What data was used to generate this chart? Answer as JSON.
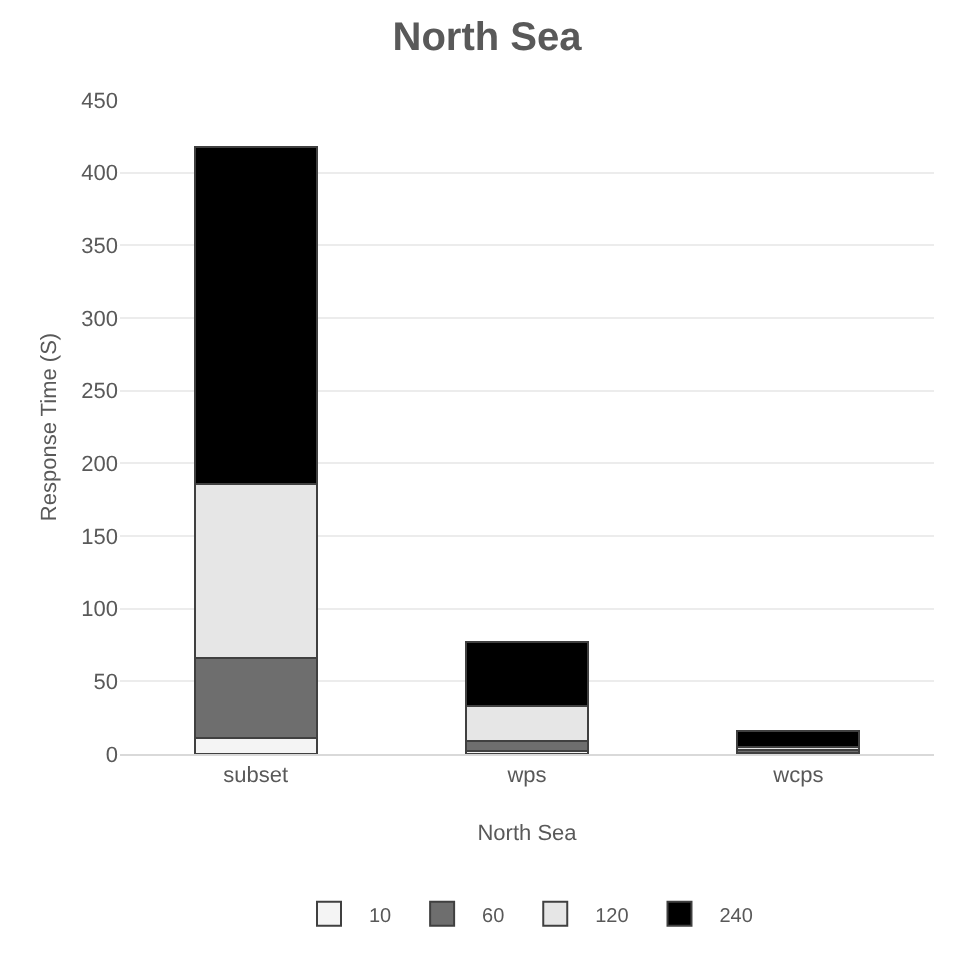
{
  "chart_data": {
    "type": "bar",
    "title": "North Sea",
    "xlabel": "North Sea",
    "ylabel": "Response Time (S)",
    "categories": [
      "subset",
      "wps",
      "wcps"
    ],
    "stacked": true,
    "ylim": [
      0,
      450
    ],
    "yticks": [
      0,
      50,
      100,
      150,
      200,
      250,
      300,
      350,
      400,
      450
    ],
    "grid": "y",
    "legend": "bottom",
    "series": [
      {
        "name": "10",
        "color": "#f4f4f4",
        "values": [
          11,
          2,
          1
        ]
      },
      {
        "name": "60",
        "color": "#6e6e6e",
        "values": [
          55,
          7,
          2
        ]
      },
      {
        "name": "120",
        "color": "#e6e6e6",
        "values": [
          120,
          24,
          2
        ]
      },
      {
        "name": "240",
        "color": "#000000",
        "values": [
          232,
          44,
          11
        ]
      }
    ]
  }
}
